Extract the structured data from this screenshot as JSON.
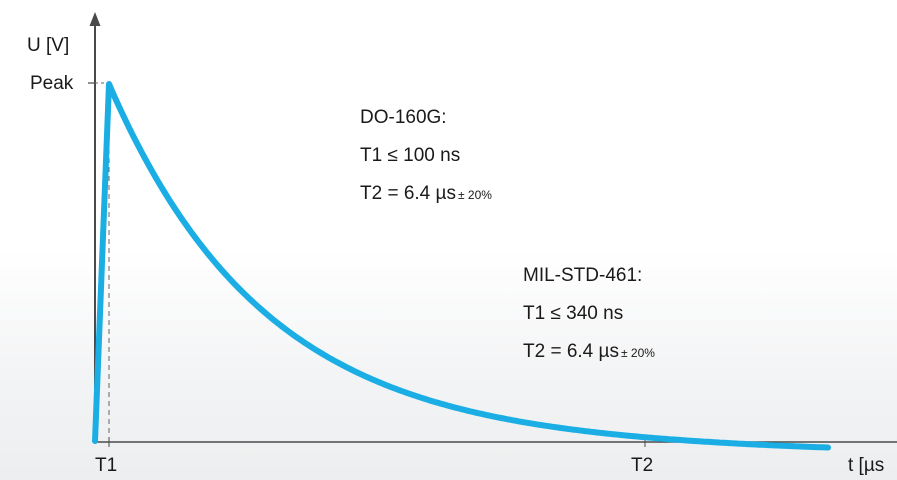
{
  "axes": {
    "y_label": "U [V]",
    "y_peak_label": "Peak",
    "x_label": "t [µs",
    "x_tick_t1": "T1",
    "x_tick_t2": "T2"
  },
  "specs": {
    "do160g": {
      "title": "DO-160G:",
      "t1": "T1 ≤ 100 ns",
      "t2": "T2 =  6.4 µs",
      "t2_tolerance": "± 20%"
    },
    "milstd461": {
      "title": "MIL-STD-461:",
      "t1": "T1 ≤ 340 ns",
      "t2": "T2 =  6.4 µs",
      "t2_tolerance": "± 20%"
    }
  },
  "colors": {
    "waveform": "#1aaee5",
    "axis": "#4a4a4a",
    "guide": "#666666"
  }
}
